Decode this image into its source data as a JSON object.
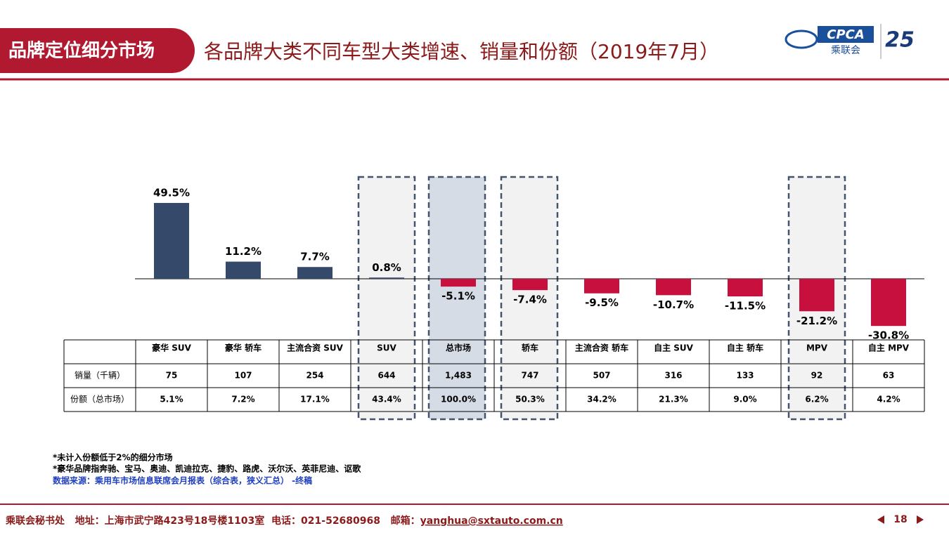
{
  "header": {
    "section": "品牌定位细分市场",
    "title": "各品牌大类不同车型大类增速、销量和份额（2019年7月）",
    "logo_text": "CPCA",
    "logo_cn": "乘联会"
  },
  "chart_data": {
    "type": "bar",
    "categories": [
      "豪华 SUV",
      "豪华 轿车",
      "主流合资 SUV",
      "SUV",
      "总市场",
      "轿车",
      "主流合资 轿车",
      "自主 SUV",
      "自主 轿车",
      "MPV",
      "自主 MPV"
    ],
    "values": [
      49.5,
      11.2,
      7.7,
      0.8,
      -5.1,
      -7.4,
      -9.5,
      -10.7,
      -11.5,
      -21.2,
      -30.8
    ],
    "value_labels": [
      "49.5%",
      "11.2%",
      "7.7%",
      "0.8%",
      "-5.1%",
      "-7.4%",
      "-9.5%",
      "-10.7%",
      "-11.5%",
      "-21.2%",
      "-30.8%"
    ],
    "colors": [
      "#354a6b",
      "#354a6b",
      "#354a6b",
      "#354a6b",
      "#c8103e",
      "#c8103e",
      "#c8103e",
      "#c8103e",
      "#c8103e",
      "#c8103e",
      "#c8103e"
    ]
  },
  "table": {
    "rows": [
      {
        "label": "销量（千辆）",
        "values": [
          "75",
          "107",
          "254",
          "644",
          "1,483",
          "747",
          "507",
          "316",
          "133",
          "92",
          "63"
        ]
      },
      {
        "label": "份额（总市场）",
        "values": [
          "5.1%",
          "7.2%",
          "17.1%",
          "43.4%",
          "100.0%",
          "50.3%",
          "34.2%",
          "21.3%",
          "9.0%",
          "6.2%",
          "4.2%"
        ]
      }
    ]
  },
  "notes": [
    "*未计入份额低于2%的细分市场",
    "*豪华品牌指奔驰、宝马、奥迪、凯迪拉克、捷豹、路虎、沃尔沃、英菲尼迪、讴歌",
    "数据来源：乘用车市场信息联席会月报表（综合表，狭义汇总） -终稿"
  ],
  "footer": {
    "text": "乘联会秘书处   地址：上海市武宁路423号18号楼1103室  电话：021-52680968   邮箱：",
    "email": "yanghua@sxtauto.com.cn",
    "page": "18"
  }
}
